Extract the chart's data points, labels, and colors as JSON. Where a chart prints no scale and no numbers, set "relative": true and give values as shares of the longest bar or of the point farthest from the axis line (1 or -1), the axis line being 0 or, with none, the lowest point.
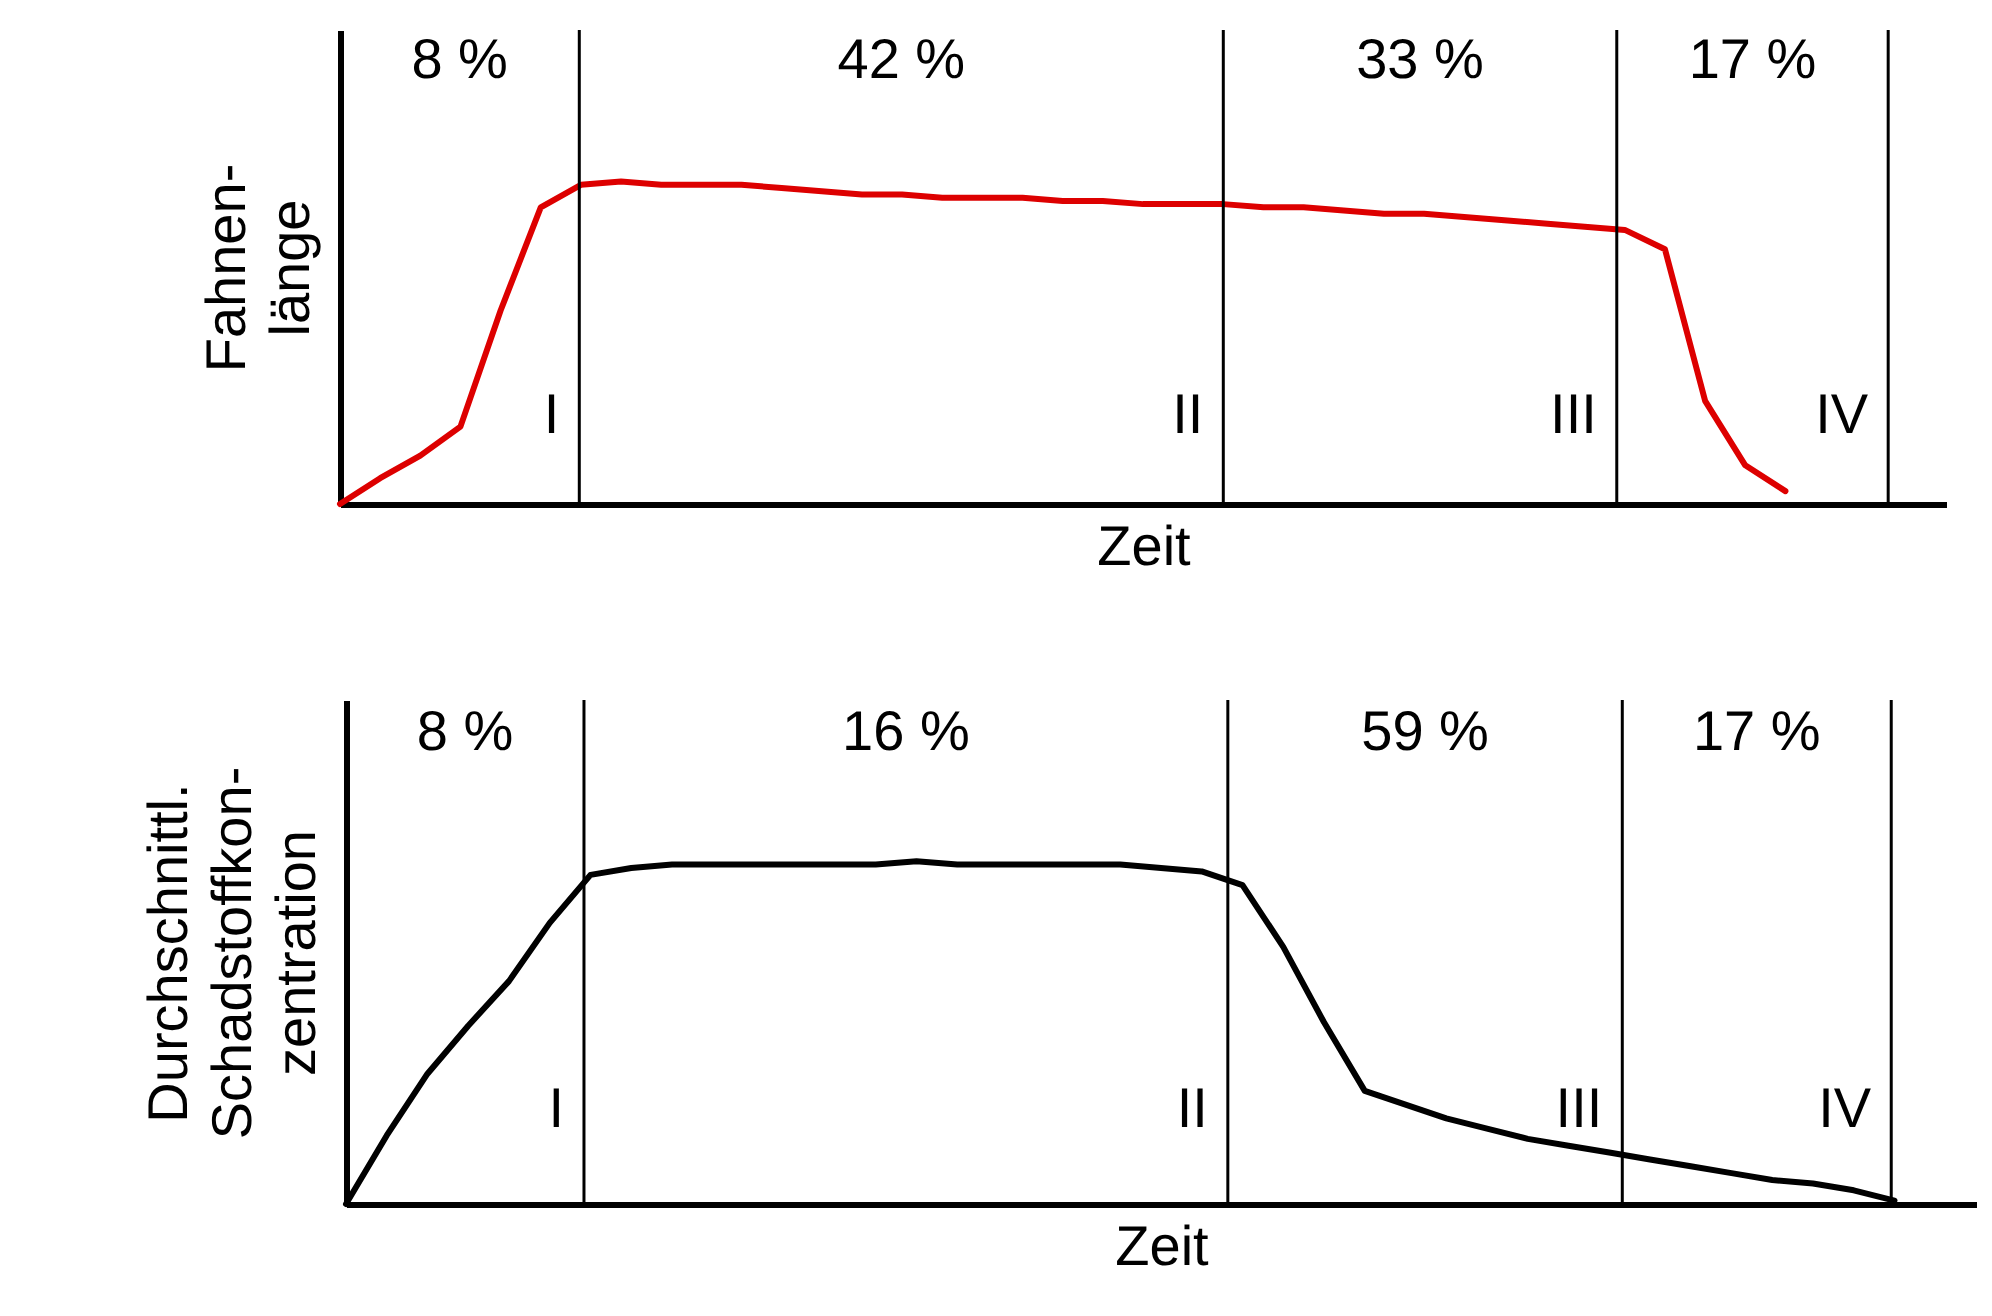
{
  "chart_data": [
    {
      "type": "line",
      "relative": true,
      "xlabel": "Zeit",
      "ylabel": "Fahnen-\nlänge",
      "categories": [
        null,
        null,
        null,
        null,
        null,
        null,
        null,
        null,
        null,
        null,
        null,
        null,
        null,
        null,
        null,
        null,
        null,
        null,
        null,
        null,
        null,
        null,
        null,
        null,
        null,
        null,
        null,
        null,
        null,
        null,
        null,
        null,
        null,
        null,
        null,
        null,
        null,
        null,
        null,
        null,
        null
      ],
      "series": [
        {
          "color": "#dd0000",
          "values": [
            0,
            0.08,
            0.15,
            0.24,
            0.6,
            0.92,
            0.99,
            1,
            0.99,
            0.99,
            0.99,
            0.98,
            0.97,
            0.96,
            0.96,
            0.95,
            0.95,
            0.95,
            0.94,
            0.94,
            0.93,
            0.93,
            0.93,
            0.92,
            0.92,
            0.91,
            0.9,
            0.9,
            0.89,
            0.88,
            0.87,
            0.86,
            0.85,
            0.79,
            0.32,
            0.12,
            0.04,
            null,
            null,
            null,
            null
          ]
        }
      ],
      "annotations": [
        "8 %",
        "42 %",
        "33 %",
        "17 %",
        "I",
        "II",
        "III",
        "IV"
      ]
    },
    {
      "type": "line",
      "relative": true,
      "xlabel": "Zeit",
      "ylabel": "Durchschnittl.\nSchadstoffkon-\nzentration",
      "categories": [
        null,
        null,
        null,
        null,
        null,
        null,
        null,
        null,
        null,
        null,
        null,
        null,
        null,
        null,
        null,
        null,
        null,
        null,
        null,
        null,
        null,
        null,
        null,
        null,
        null,
        null,
        null,
        null,
        null,
        null,
        null,
        null,
        null,
        null,
        null,
        null,
        null,
        null,
        null,
        null,
        null
      ],
      "series": [
        {
          "color": "#000000",
          "values": [
            0,
            0.2,
            0.38,
            0.52,
            0.65,
            0.82,
            0.96,
            0.98,
            0.99,
            0.99,
            0.99,
            0.99,
            0.99,
            0.99,
            1,
            0.99,
            0.99,
            0.99,
            0.99,
            0.99,
            0.98,
            0.97,
            0.93,
            0.75,
            0.53,
            0.33,
            0.29,
            0.25,
            0.22,
            0.19,
            0.17,
            0.15,
            0.13,
            0.11,
            0.09,
            0.07,
            0.06,
            0.04,
            0.01,
            null,
            null
          ]
        }
      ],
      "annotations": [
        "8 %",
        "16 %",
        "59 %",
        "17 %",
        "I",
        "II",
        "III",
        "IV"
      ]
    }
  ]
}
